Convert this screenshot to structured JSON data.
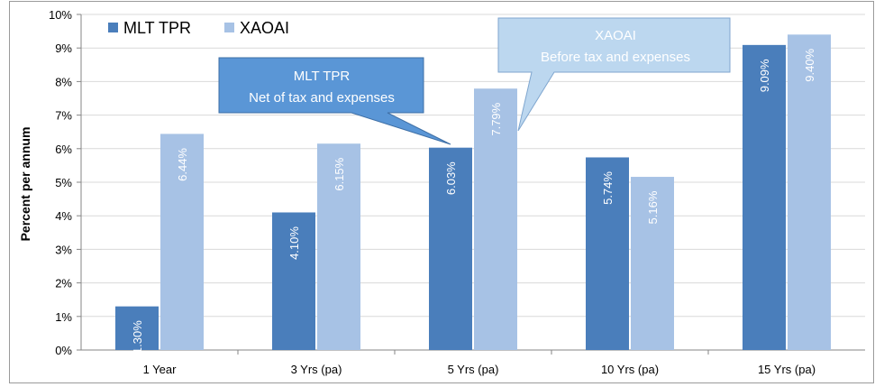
{
  "chart_data": {
    "type": "bar",
    "categories": [
      "1 Year",
      "3 Yrs (pa)",
      "5 Yrs (pa)",
      "10 Yrs (pa)",
      "15 Yrs (pa)"
    ],
    "series": [
      {
        "name": "MLT TPR",
        "color": "#4a7ebb",
        "values": [
          1.3,
          4.1,
          6.03,
          5.74,
          9.09
        ],
        "labels": [
          "1.30%",
          "4.10%",
          "6.03%",
          "5.74%",
          "9.09%"
        ]
      },
      {
        "name": "XAOAI",
        "color": "#a7c2e5",
        "values": [
          6.44,
          6.15,
          7.79,
          5.16,
          9.4
        ],
        "labels": [
          "6.44%",
          "6.15%",
          "7.79%",
          "5.16%",
          "9.40%"
        ]
      }
    ],
    "yticks": [
      "0%",
      "1%",
      "2%",
      "3%",
      "4%",
      "5%",
      "6%",
      "7%",
      "8%",
      "9%",
      "10%"
    ],
    "ylim": [
      0,
      10
    ],
    "ylabel": "Percent per annum",
    "xlabel": "",
    "title": "",
    "grid": true,
    "legend_position": "top-left",
    "callouts": [
      {
        "line1": "MLT TPR",
        "line2": "Net of tax and expenses",
        "target_series": "MLT TPR",
        "target_category": "5 Yrs (pa)"
      },
      {
        "line1": "XAOAI",
        "line2": "Before tax and expenses",
        "target_series": "XAOAI",
        "target_category": "5 Yrs (pa)"
      }
    ]
  }
}
